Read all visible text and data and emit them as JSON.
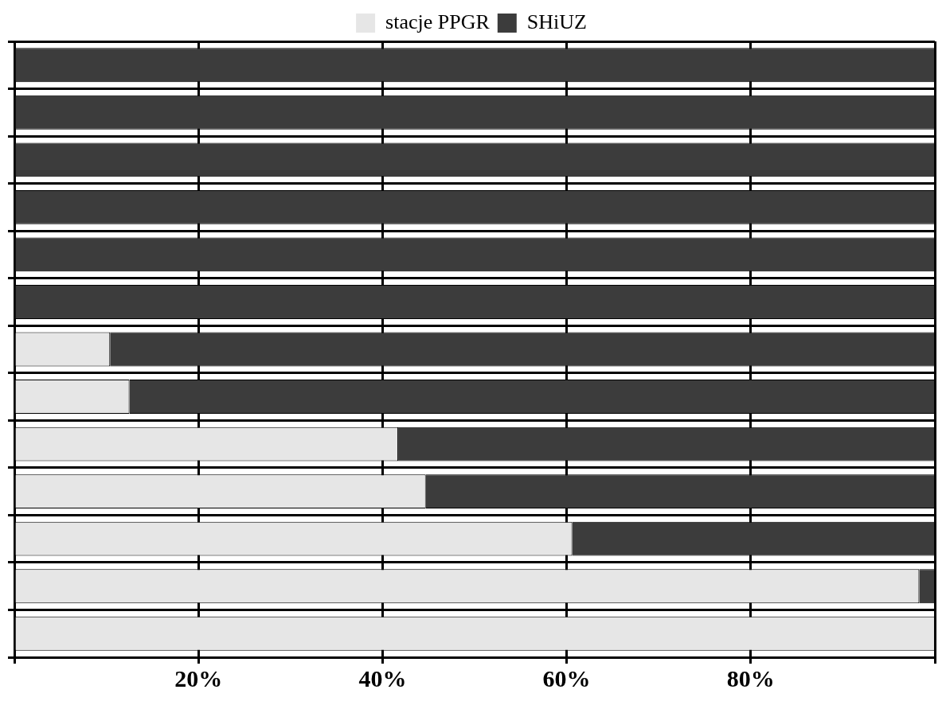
{
  "chart_data": {
    "type": "bar",
    "orientation": "horizontal",
    "stacked": true,
    "categories": [
      null,
      null,
      null,
      null,
      null,
      null,
      null,
      null,
      null,
      null,
      null,
      null,
      null
    ],
    "series": [
      {
        "name": "stacje PPGR",
        "color": "#e6e6e6",
        "values": [
          0,
          0,
          0,
          0,
          0,
          0,
          10.4,
          12.5,
          41.7,
          44.7,
          60.6,
          98.3,
          100
        ]
      },
      {
        "name": "SHiUZ",
        "color": "#3c3c3c",
        "values": [
          100,
          100,
          100,
          100,
          100,
          100,
          89.6,
          87.5,
          58.3,
          55.3,
          39.4,
          1.7,
          0
        ]
      }
    ],
    "xlim": [
      0,
      100
    ],
    "xticks": [
      {
        "value": 0,
        "label": null
      },
      {
        "value": 20,
        "label": "20%"
      },
      {
        "value": 40,
        "label": "40%"
      },
      {
        "value": 60,
        "label": "60%"
      },
      {
        "value": 80,
        "label": "80%"
      },
      {
        "value": 100,
        "label": null
      }
    ],
    "grid": true,
    "legend": "top"
  }
}
